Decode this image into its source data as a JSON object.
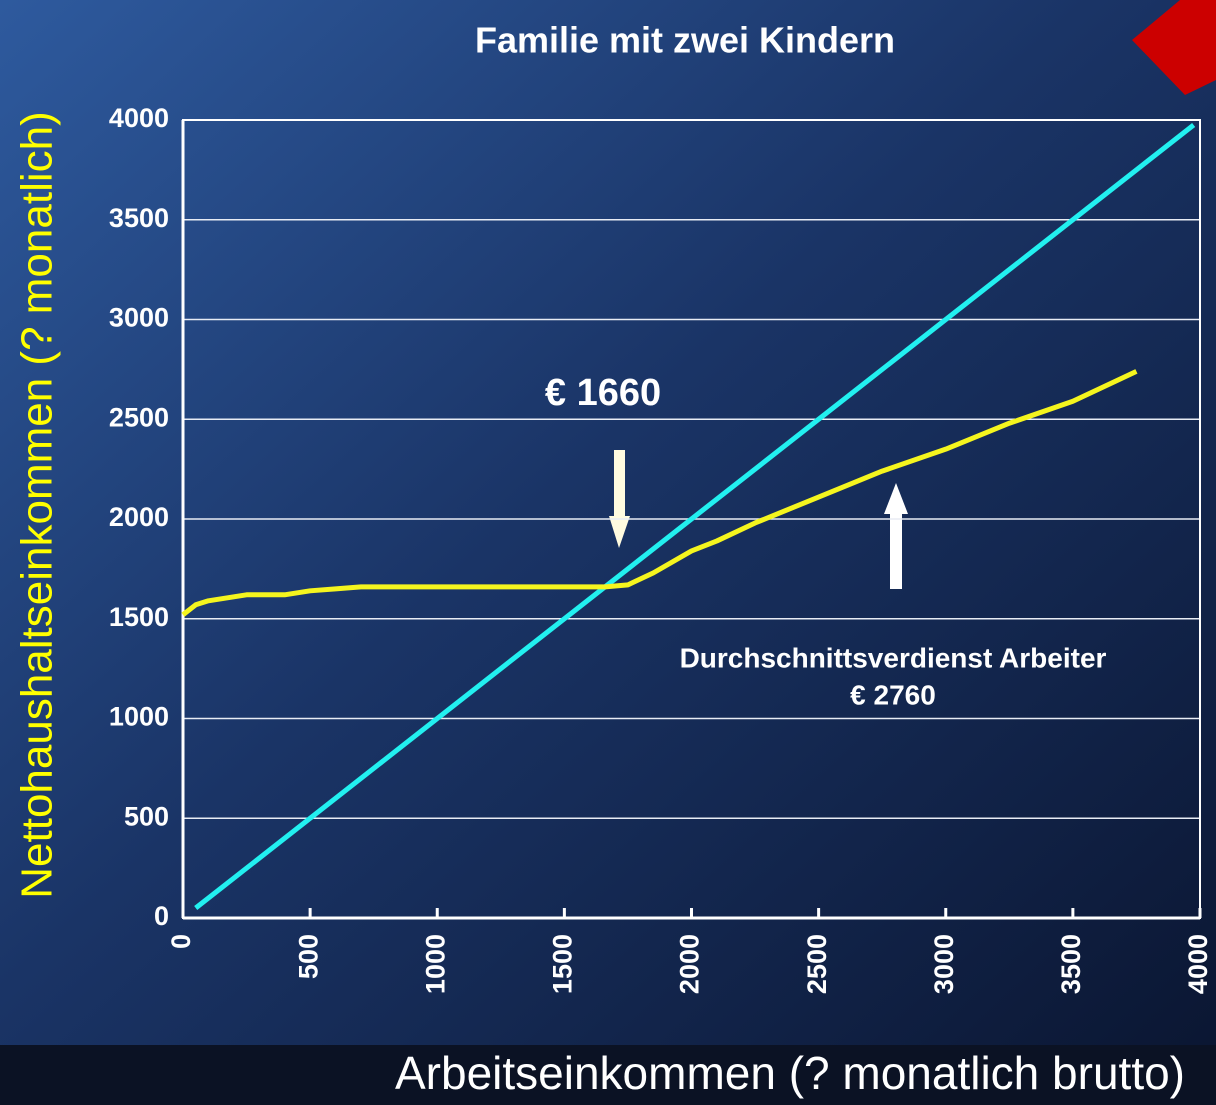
{
  "chart_data": {
    "type": "line",
    "title": "Familie mit zwei Kindern",
    "x_label": "Arbeitseinkommen (? monatlich brutto)",
    "y_label": "Nettohaushaltseinkommen (?  monatlich)",
    "xlim": [
      0,
      4000
    ],
    "xticks": [
      0,
      500,
      1000,
      1500,
      2000,
      2500,
      3000,
      3500,
      4000
    ],
    "ylim": [
      0,
      4000
    ],
    "yticks": [
      0,
      500,
      1000,
      1500,
      2000,
      2500,
      3000,
      3500,
      4000
    ],
    "grid": true,
    "series": [
      {
        "color": "#22f0f0",
        "x": [
          50,
          3975
        ],
        "values": [
          50,
          3975
        ]
      },
      {
        "color": "#f5f51e",
        "x": [
          0,
          50,
          100,
          200,
          250,
          400,
          500,
          600,
          700,
          1000,
          1500,
          1660,
          1750,
          1850,
          2000,
          2100,
          2250,
          2500,
          2750,
          3000,
          3250,
          3500,
          3750
        ],
        "values": [
          1520,
          1570,
          1590,
          1610,
          1620,
          1620,
          1640,
          1650,
          1660,
          1660,
          1660,
          1660,
          1670,
          1730,
          1840,
          1890,
          1980,
          2110,
          2240,
          2350,
          2480,
          2590,
          2740
        ]
      }
    ],
    "annotations": [
      "€ 1660",
      "Durchschnittsverdienst Arbeiter",
      "€ 2760"
    ]
  }
}
